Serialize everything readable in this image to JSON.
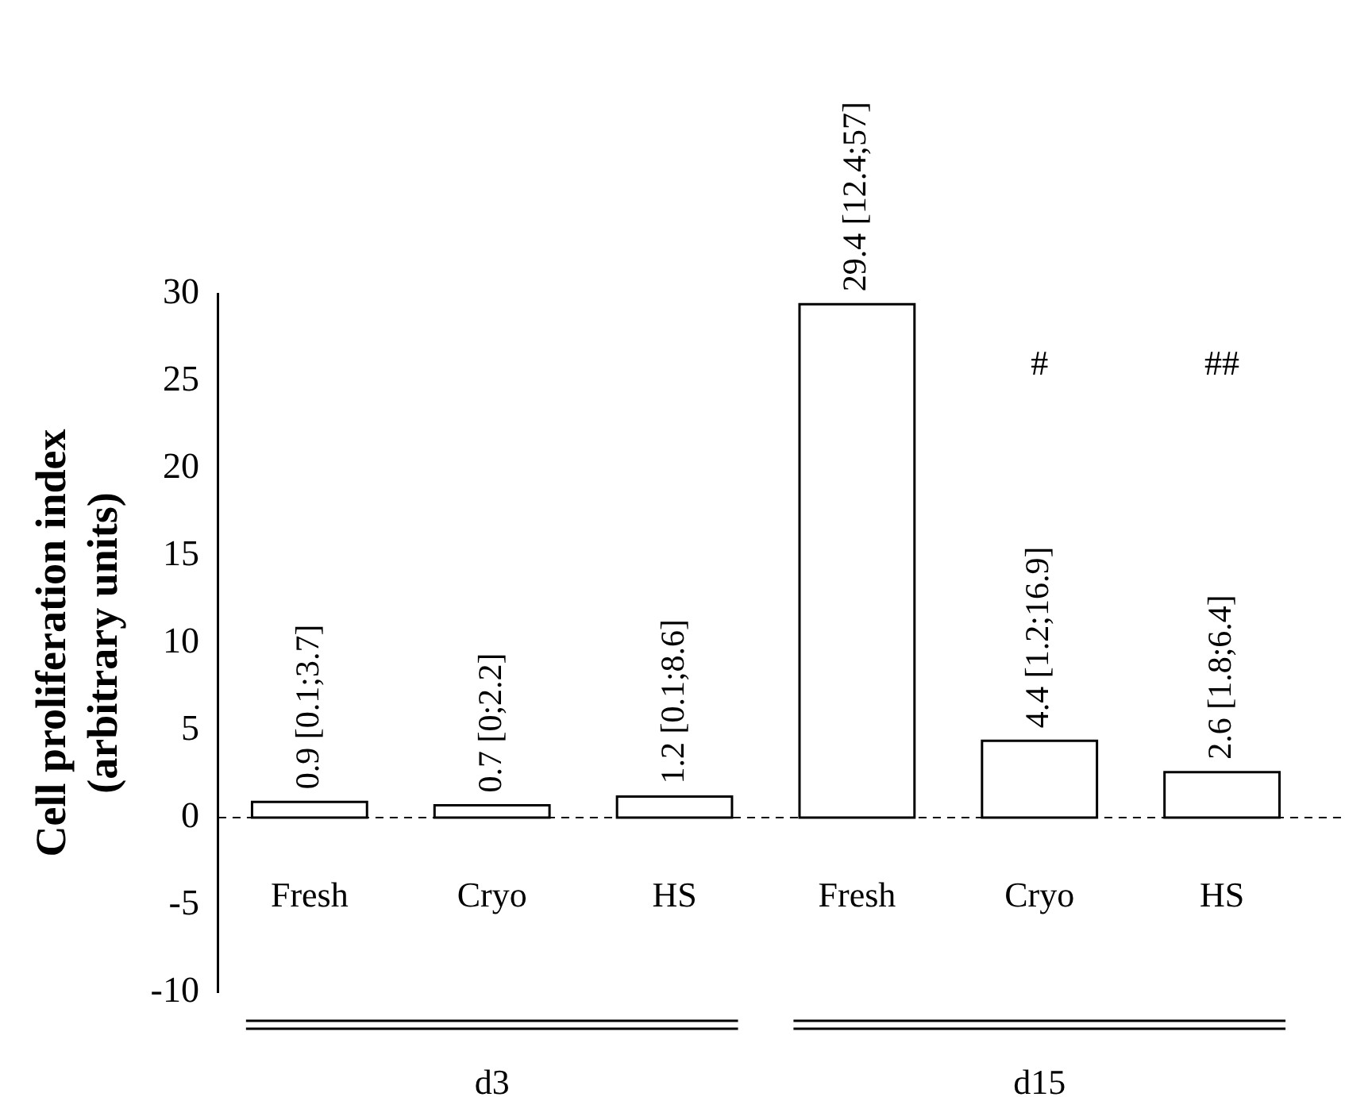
{
  "chart_data": {
    "type": "bar",
    "ylabel": "Cell proliferation index\n(arbitrary units)",
    "categories": [
      "Fresh",
      "Cryo",
      "HS",
      "Fresh",
      "Cryo",
      "HS"
    ],
    "values": [
      0.9,
      0.7,
      1.2,
      29.4,
      4.4,
      2.6
    ],
    "value_labels": [
      "0.9 [0.1;3.7]",
      "0.7 [0;2.2]",
      "1.2 [0.1;8.6]",
      "29.4 [12.4;57]",
      "4.4 [1.2;16.9]",
      "2.6 [1.8;6.4]"
    ],
    "color": "#ffffff",
    "ylim": [
      -10,
      30
    ],
    "yticks": [
      -10,
      -5,
      0,
      5,
      10,
      15,
      20,
      25,
      30
    ],
    "ref_lines": [
      {
        "axis": "y",
        "value": 0,
        "line_style": "dashed",
        "color": "#000000"
      }
    ],
    "annotations": [
      "d3",
      "d15",
      "#",
      "##"
    ],
    "grid": false,
    "legend": false
  }
}
